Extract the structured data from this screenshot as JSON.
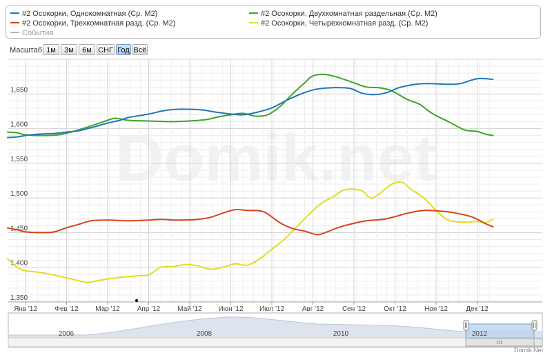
{
  "legend": [
    {
      "label": "#2 Осокорки, Однокомнатная (Ср. М2)",
      "color": "#1f77b4"
    },
    {
      "label": "#2 Осокорки, Двухкомнатная раздельная (Ср. М2)",
      "color": "#3ea32a"
    },
    {
      "label": "#2 Осокорки, Трехкомнатная разд. (Ср. М2)",
      "color": "#d9421a"
    },
    {
      "label": "#2 Осокорки, Четырехкомнатная разд. (Ср. М2)",
      "color": "#e0de1f"
    },
    {
      "label": "События",
      "color": "#b5b5b5"
    }
  ],
  "zoom": {
    "label": "Масштаб",
    "buttons": [
      "1м",
      "3м",
      "6м",
      "СНГ",
      "Год",
      "Всё"
    ],
    "active": "Год"
  },
  "watermark": "Domik.net",
  "credit": "Domik.Net",
  "navigator": {
    "labels": [
      "2006",
      "2008",
      "2010",
      "2012"
    ]
  },
  "chart_data": {
    "type": "line",
    "x_ticks": [
      "Янв '12",
      "Фев '12",
      "Мар '12",
      "Апр '12",
      "Май '12",
      "Июн '12",
      "Июл '12",
      "Авг '12",
      "Сен '12",
      "Окт '12",
      "Ноя '12",
      "Дек '12"
    ],
    "y_ticks": [
      "1,350",
      "1,400",
      "1,450",
      "1,500",
      "1,550",
      "1,600",
      "1,650"
    ],
    "ylim": [
      1350,
      1700
    ],
    "x_range_months": [
      -0.45,
      11.4
    ],
    "grid": true,
    "legend_position": "top",
    "series": [
      {
        "name": "#2 Осокорки, Однокомнатная (Ср. М2)",
        "color": "#1f77b4",
        "points": [
          [
            -0.45,
            1587
          ],
          [
            -0.2,
            1588
          ],
          [
            0,
            1590
          ],
          [
            0.3,
            1592
          ],
          [
            0.7,
            1593
          ],
          [
            1,
            1595
          ],
          [
            1.3,
            1597
          ],
          [
            1.7,
            1603
          ],
          [
            2,
            1608
          ],
          [
            2.3,
            1612
          ],
          [
            2.5,
            1616
          ],
          [
            3,
            1621
          ],
          [
            3.3,
            1625
          ],
          [
            3.5,
            1627
          ],
          [
            3.8,
            1628
          ],
          [
            4.3,
            1627
          ],
          [
            4.6,
            1624
          ],
          [
            5,
            1621
          ],
          [
            5.3,
            1620
          ],
          [
            5.6,
            1623
          ],
          [
            6,
            1630
          ],
          [
            6.4,
            1642
          ],
          [
            6.8,
            1652
          ],
          [
            7.1,
            1657
          ],
          [
            7.5,
            1659
          ],
          [
            7.9,
            1658
          ],
          [
            8.2,
            1651
          ],
          [
            8.5,
            1649
          ],
          [
            8.8,
            1652
          ],
          [
            9.1,
            1659
          ],
          [
            9.5,
            1664
          ],
          [
            9.8,
            1665
          ],
          [
            10.3,
            1664
          ],
          [
            10.6,
            1665
          ],
          [
            11,
            1672
          ],
          [
            11.4,
            1671
          ]
        ]
      },
      {
        "name": "#2 Осокорки, Двухкомнатная раздельная (Ср. М2)",
        "color": "#3ea32a",
        "points": [
          [
            -0.45,
            1595
          ],
          [
            -0.2,
            1594
          ],
          [
            0,
            1591
          ],
          [
            0.4,
            1590
          ],
          [
            0.8,
            1591
          ],
          [
            1.1,
            1595
          ],
          [
            1.5,
            1602
          ],
          [
            2,
            1612
          ],
          [
            2.2,
            1615
          ],
          [
            2.5,
            1612
          ],
          [
            3,
            1611
          ],
          [
            3.5,
            1610
          ],
          [
            4,
            1611
          ],
          [
            4.4,
            1613
          ],
          [
            4.7,
            1617
          ],
          [
            5,
            1620
          ],
          [
            5.3,
            1622
          ],
          [
            5.6,
            1618
          ],
          [
            5.9,
            1620
          ],
          [
            6.2,
            1632
          ],
          [
            6.5,
            1650
          ],
          [
            6.8,
            1666
          ],
          [
            7,
            1676
          ],
          [
            7.3,
            1678
          ],
          [
            7.6,
            1674
          ],
          [
            8,
            1666
          ],
          [
            8.3,
            1660
          ],
          [
            8.6,
            1659
          ],
          [
            8.9,
            1655
          ],
          [
            9.3,
            1642
          ],
          [
            9.6,
            1635
          ],
          [
            9.9,
            1622
          ],
          [
            10.3,
            1610
          ],
          [
            10.7,
            1598
          ],
          [
            11,
            1596
          ],
          [
            11.2,
            1592
          ],
          [
            11.4,
            1590
          ]
        ]
      },
      {
        "name": "#2 Осокорки, Трехкомнатная разд. (Ср. М2)",
        "color": "#d9421a",
        "points": [
          [
            -0.45,
            1457
          ],
          [
            -0.2,
            1454
          ],
          [
            0,
            1451
          ],
          [
            0.4,
            1450
          ],
          [
            0.7,
            1451
          ],
          [
            1,
            1457
          ],
          [
            1.3,
            1462
          ],
          [
            1.6,
            1467
          ],
          [
            2,
            1468
          ],
          [
            2.5,
            1467
          ],
          [
            3,
            1468
          ],
          [
            3.3,
            1469
          ],
          [
            3.7,
            1468
          ],
          [
            4.2,
            1469
          ],
          [
            4.5,
            1472
          ],
          [
            4.8,
            1478
          ],
          [
            5.1,
            1483
          ],
          [
            5.4,
            1482
          ],
          [
            5.8,
            1480
          ],
          [
            6.2,
            1464
          ],
          [
            6.5,
            1456
          ],
          [
            6.8,
            1452
          ],
          [
            7.1,
            1447
          ],
          [
            7.3,
            1450
          ],
          [
            7.6,
            1457
          ],
          [
            7.9,
            1462
          ],
          [
            8.3,
            1467
          ],
          [
            8.7,
            1469
          ],
          [
            9,
            1473
          ],
          [
            9.3,
            1478
          ],
          [
            9.7,
            1482
          ],
          [
            10.1,
            1481
          ],
          [
            10.5,
            1478
          ],
          [
            10.9,
            1472
          ],
          [
            11.2,
            1463
          ],
          [
            11.4,
            1458
          ]
        ]
      },
      {
        "name": "#2 Осокорки, Четырехкомнатная разд. (Ср. М2)",
        "color": "#e0de1f",
        "points": [
          [
            -0.45,
            1413
          ],
          [
            -0.2,
            1400
          ],
          [
            0,
            1395
          ],
          [
            0.3,
            1393
          ],
          [
            0.6,
            1390
          ],
          [
            0.9,
            1386
          ],
          [
            1.2,
            1382
          ],
          [
            1.5,
            1378
          ],
          [
            1.7,
            1380
          ],
          [
            2,
            1383
          ],
          [
            2.4,
            1386
          ],
          [
            2.8,
            1388
          ],
          [
            3,
            1389
          ],
          [
            3.3,
            1400
          ],
          [
            3.6,
            1401
          ],
          [
            3.9,
            1404
          ],
          [
            4.2,
            1402
          ],
          [
            4.5,
            1397
          ],
          [
            4.8,
            1400
          ],
          [
            5.1,
            1405
          ],
          [
            5.4,
            1403
          ],
          [
            5.7,
            1412
          ],
          [
            6,
            1426
          ],
          [
            6.3,
            1440
          ],
          [
            6.6,
            1458
          ],
          [
            6.9,
            1476
          ],
          [
            7.2,
            1492
          ],
          [
            7.5,
            1502
          ],
          [
            7.7,
            1510
          ],
          [
            7.9,
            1513
          ],
          [
            8.2,
            1510
          ],
          [
            8.4,
            1500
          ],
          [
            8.6,
            1505
          ],
          [
            8.8,
            1515
          ],
          [
            9,
            1522
          ],
          [
            9.2,
            1522
          ],
          [
            9.4,
            1512
          ],
          [
            9.7,
            1500
          ],
          [
            10,
            1482
          ],
          [
            10.3,
            1468
          ],
          [
            10.7,
            1465
          ],
          [
            11,
            1466
          ],
          [
            11.2,
            1464
          ],
          [
            11.4,
            1470
          ]
        ]
      }
    ]
  }
}
